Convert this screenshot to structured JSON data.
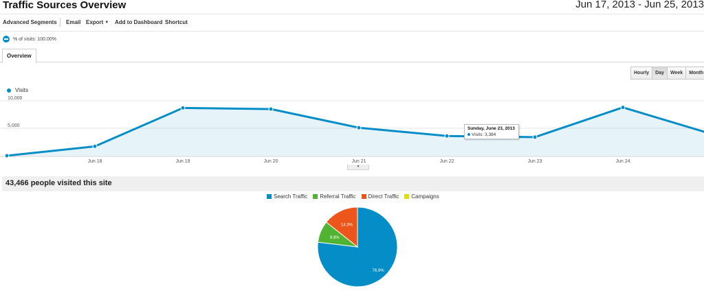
{
  "header": {
    "title": "Traffic Sources Overview",
    "date_range": "Jun 17, 2013 - Jun 25, 2013"
  },
  "toolbar": {
    "advanced_segments": "Advanced Segments",
    "email": "Email",
    "export": "Export",
    "add_to_dashboard": "Add to Dashboard",
    "shortcut": "Shortcut"
  },
  "segment": {
    "label": "% of visits: 100.00%"
  },
  "tabs": {
    "overview": "Overview"
  },
  "granularity": {
    "hourly": "Hourly",
    "day": "Day",
    "week": "Week",
    "month": "Month",
    "selected": "Day"
  },
  "tooltip": {
    "date": "Sunday, June 23, 2013",
    "value": "Visits: 3,384"
  },
  "summary": {
    "text": "43,466 people visited this site"
  },
  "colors": {
    "visits": "#058dc7",
    "search": "#058dc7",
    "referral": "#50b432",
    "direct": "#ed561b",
    "campaigns": "#dddf00"
  },
  "chart_data": [
    {
      "type": "area",
      "series": [
        {
          "name": "Visits",
          "x": [
            "Jun 17",
            "Jun 18",
            "Jun 19",
            "Jun 20",
            "Jun 21",
            "Jun 22",
            "Jun 23",
            "Jun 24",
            "Jun 25"
          ],
          "values": [
            0,
            1700,
            8700,
            8500,
            5100,
            3600,
            3384,
            8800,
            4000
          ]
        }
      ],
      "x_tick_labels": [
        "Jun 18",
        "Jun 19",
        "Jun 20",
        "Jun 21",
        "Jun 22",
        "Jun 23",
        "Jun 24"
      ],
      "y_tick_labels": [
        "10,000",
        "5,000"
      ],
      "ylim": [
        0,
        10000
      ],
      "grid": true,
      "highlighted_point": {
        "x": "Jun 23",
        "value": 3384
      }
    },
    {
      "type": "pie",
      "categories": [
        "Search Traffic",
        "Referral Traffic",
        "Direct Traffic",
        "Campaigns"
      ],
      "values": [
        76.9,
        8.8,
        14.3,
        0
      ],
      "labels": [
        "76.9%",
        "8.8%",
        "14.3%",
        ""
      ],
      "legend_position": "top"
    }
  ]
}
